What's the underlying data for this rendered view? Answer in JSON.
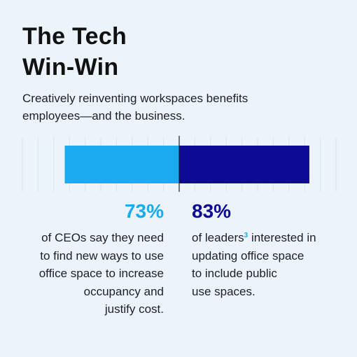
{
  "title_lines": [
    "The Tech",
    "Win-Win"
  ],
  "subtitle_lines": [
    "Creatively reinventing workspaces benefits",
    "employees—and the business."
  ],
  "colors": {
    "left": "#1aaaf0",
    "right": "#0d0a96",
    "background": "#ecf3fb"
  },
  "stats": [
    {
      "value": "73%",
      "lines": [
        "of CEOs say they need",
        "to find new ways to use",
        "office space to increase",
        "occupancy and",
        "justify cost."
      ]
    },
    {
      "value": "83%",
      "lines": [
        {
          "before": "of leaders",
          "sup": "3",
          "after": " interested in"
        },
        "updating office space",
        "to include public",
        "use spaces."
      ]
    }
  ],
  "chart_data": {
    "type": "bar",
    "orientation": "diverging-horizontal",
    "series": [
      {
        "values": [
          73
        ]
      },
      {
        "values": [
          83
        ]
      }
    ],
    "xlim": [
      0,
      100
    ],
    "grid": true
  }
}
